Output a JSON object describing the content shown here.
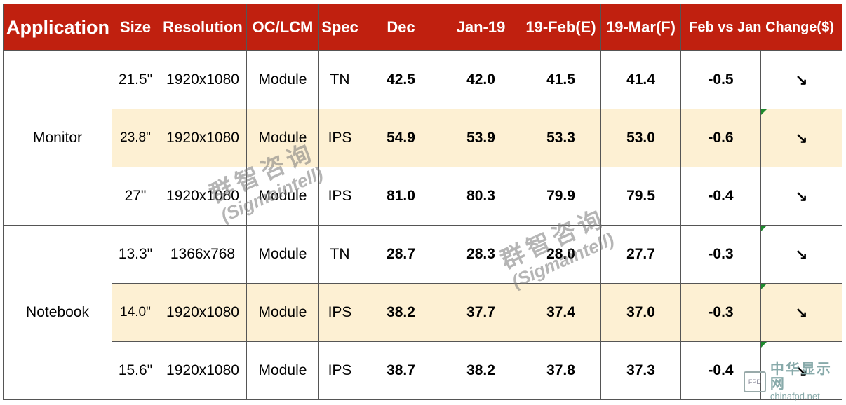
{
  "chart_data": {
    "type": "table",
    "columns": [
      "Application",
      "Size",
      "Resolution",
      "OC/LCM",
      "Spec",
      "Dec",
      "Jan-19",
      "19-Feb(E)",
      "19-Mar(F)",
      "Feb vs Jan Change($)"
    ],
    "groups": [
      {
        "application": "Monitor",
        "rows": [
          {
            "size": "21.5\"",
            "resolution": "1920x1080",
            "type": "Module",
            "spec": "TN",
            "dec": "42.5",
            "jan": "42.0",
            "feb": "41.5",
            "mar": "41.4",
            "change": "-0.5",
            "arrow": "↘",
            "marker": false,
            "shaded": false
          },
          {
            "size": "23.8\"",
            "resolution": "1920x1080",
            "type": "Module",
            "spec": "IPS",
            "dec": "54.9",
            "jan": "53.9",
            "feb": "53.3",
            "mar": "53.0",
            "change": "-0.6",
            "arrow": "↘",
            "marker": true,
            "shaded": true
          },
          {
            "size": "27\"",
            "resolution": "1920x1080",
            "type": "Module",
            "spec": "IPS",
            "dec": "81.0",
            "jan": "80.3",
            "feb": "79.9",
            "mar": "79.5",
            "change": "-0.4",
            "arrow": "↘",
            "marker": false,
            "shaded": false
          }
        ]
      },
      {
        "application": "Notebook",
        "rows": [
          {
            "size": "13.3\"",
            "resolution": "1366x768",
            "type": "Module",
            "spec": "TN",
            "dec": "28.7",
            "jan": "28.3",
            "feb": "28.0",
            "mar": "27.7",
            "change": "-0.3",
            "arrow": "↘",
            "marker": true,
            "shaded": false
          },
          {
            "size": "14.0\"",
            "resolution": "1920x1080",
            "type": "Module",
            "spec": "IPS",
            "dec": "38.2",
            "jan": "37.7",
            "feb": "37.4",
            "mar": "37.0",
            "change": "-0.3",
            "arrow": "↘",
            "marker": true,
            "shaded": true
          },
          {
            "size": "15.6\"",
            "resolution": "1920x1080",
            "type": "Module",
            "spec": "IPS",
            "dec": "38.7",
            "jan": "38.2",
            "feb": "37.8",
            "mar": "37.3",
            "change": "-0.4",
            "arrow": "↘",
            "marker": true,
            "shaded": false
          }
        ]
      }
    ]
  },
  "colors": {
    "header_bg": "#c0200f",
    "shade": "#fdf0d3",
    "arrow": "#1ea74a"
  },
  "watermark": {
    "cn": "群智咨询",
    "en": "(Sigmaintell)"
  },
  "logo": {
    "cn": "中华显示网",
    "en": "chinafpd.net",
    "badge": "FPD"
  }
}
